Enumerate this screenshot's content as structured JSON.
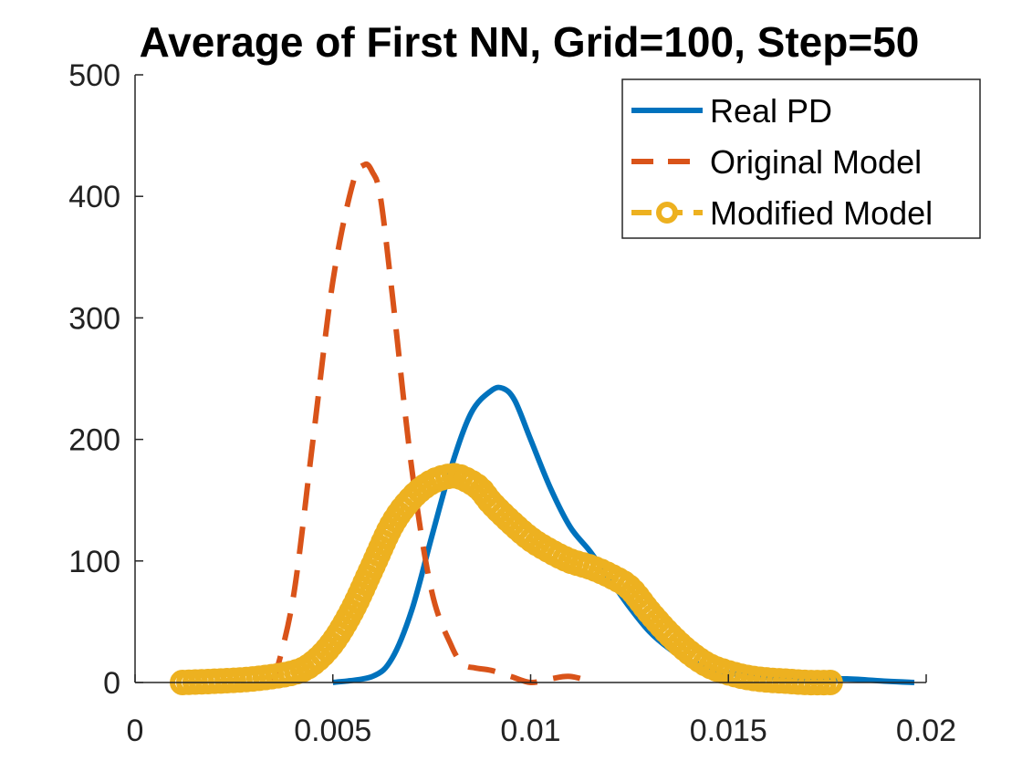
{
  "chart_data": {
    "type": "line",
    "title": "Average of First NN, Grid=100, Step=50",
    "xlabel": "",
    "ylabel": "",
    "xlim": [
      0,
      0.02
    ],
    "ylim": [
      0,
      500
    ],
    "x_ticks": [
      0,
      0.005,
      0.01,
      0.015,
      0.02
    ],
    "x_tick_labels": [
      "0",
      "0.005",
      "0.01",
      "0.015",
      "0.02"
    ],
    "y_ticks": [
      0,
      100,
      200,
      300,
      400,
      500
    ],
    "y_tick_labels": [
      "0",
      "100",
      "200",
      "300",
      "400",
      "500"
    ],
    "grid": false,
    "legend_position": "top-right",
    "series": [
      {
        "name": "Real PD",
        "style": "solid",
        "color": "#0072BD",
        "x": [
          0.005,
          0.006,
          0.0065,
          0.007,
          0.0075,
          0.008,
          0.0085,
          0.009,
          0.0093,
          0.0096,
          0.01,
          0.0105,
          0.011,
          0.0115,
          0.012,
          0.0125,
          0.013,
          0.0135,
          0.014,
          0.015,
          0.016,
          0.017,
          0.018,
          0.019,
          0.0197
        ],
        "y": [
          0,
          5,
          20,
          60,
          120,
          178,
          222,
          240,
          242,
          232,
          200,
          160,
          128,
          108,
          85,
          62,
          42,
          28,
          18,
          8,
          4,
          3,
          3,
          1,
          0
        ]
      },
      {
        "name": "Original Model",
        "style": "dashed",
        "color": "#D95319",
        "x": [
          0.0035,
          0.004,
          0.0045,
          0.005,
          0.0055,
          0.0058,
          0.006,
          0.0062,
          0.0065,
          0.007,
          0.0075,
          0.008,
          0.0083,
          0.0086,
          0.009,
          0.0095,
          0.01,
          0.0105,
          0.011,
          0.0116
        ],
        "y": [
          0,
          70,
          200,
          330,
          410,
          426,
          420,
          400,
          320,
          175,
          75,
          30,
          15,
          12,
          10,
          5,
          0,
          3,
          5,
          0
        ]
      },
      {
        "name": "Modified Model",
        "style": "dashed-circle",
        "color": "#EDB120",
        "x": [
          0.0012,
          0.002,
          0.003,
          0.004,
          0.0045,
          0.005,
          0.0055,
          0.006,
          0.0065,
          0.007,
          0.0075,
          0.008,
          0.0083,
          0.0087,
          0.009,
          0.0095,
          0.01,
          0.0105,
          0.011,
          0.0115,
          0.012,
          0.0125,
          0.013,
          0.0135,
          0.014,
          0.0145,
          0.015,
          0.0155,
          0.016,
          0.0165,
          0.017,
          0.0177
        ],
        "y": [
          0,
          1,
          3,
          8,
          16,
          33,
          60,
          95,
          130,
          152,
          165,
          170,
          168,
          160,
          148,
          132,
          118,
          108,
          100,
          95,
          88,
          78,
          58,
          40,
          25,
          14,
          8,
          4,
          2,
          1,
          0,
          0
        ]
      }
    ]
  }
}
